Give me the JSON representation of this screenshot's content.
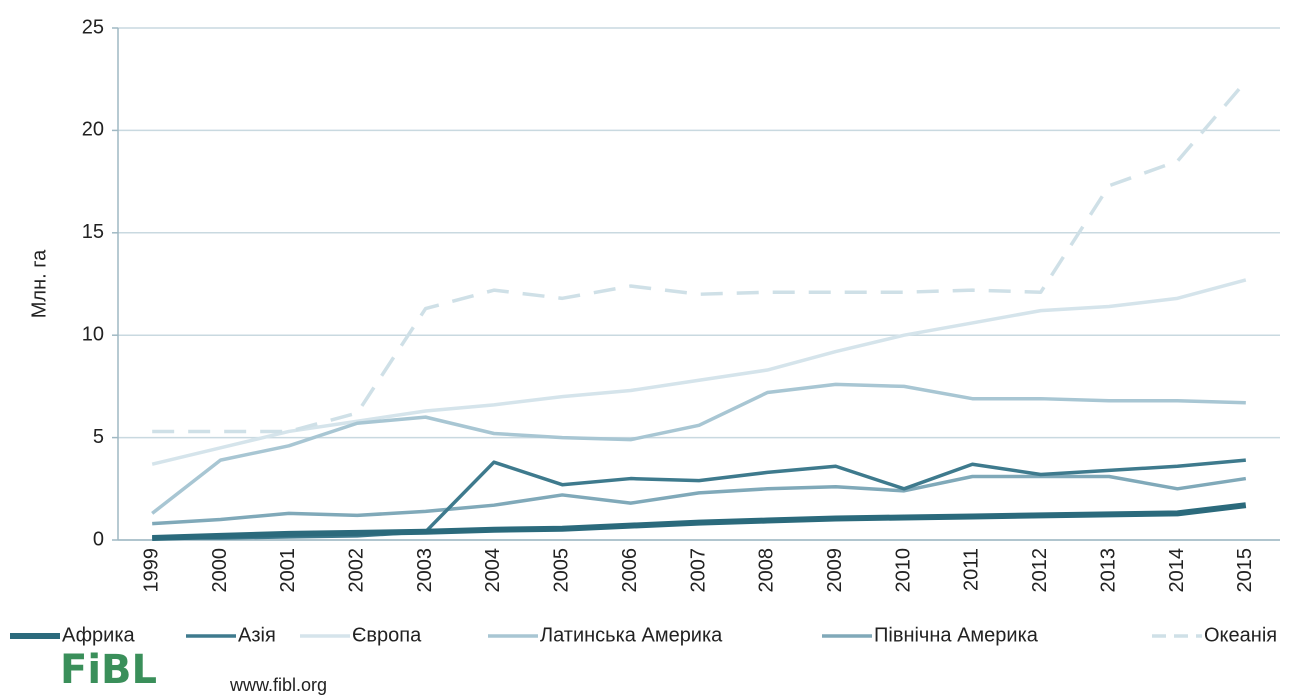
{
  "chart_data": {
    "type": "line",
    "y_label": "Млн. га",
    "categories": [
      "1999",
      "2000",
      "2001",
      "2002",
      "2003",
      "2004",
      "2005",
      "2006",
      "2007",
      "2008",
      "2009",
      "2010",
      "2011",
      "2012",
      "2013",
      "2014",
      "2015"
    ],
    "series": [
      {
        "name": "Африка",
        "color": "#2b6a7c",
        "values": [
          0.1,
          0.2,
          0.3,
          0.35,
          0.4,
          0.5,
          0.55,
          0.7,
          0.85,
          0.95,
          1.05,
          1.1,
          1.15,
          1.2,
          1.25,
          1.3,
          1.7
        ]
      },
      {
        "name": "Азія",
        "color": "#3e7a8d",
        "values": [
          0.1,
          0.1,
          0.15,
          0.2,
          0.4,
          3.8,
          2.7,
          3.0,
          2.9,
          3.3,
          3.6,
          2.5,
          3.7,
          3.2,
          3.4,
          3.6,
          3.9
        ]
      },
      {
        "name": "Європа",
        "color": "#d5e4eb",
        "values": [
          3.7,
          4.5,
          5.3,
          5.8,
          6.3,
          6.6,
          7.0,
          7.3,
          7.8,
          8.3,
          9.2,
          10.0,
          10.6,
          11.2,
          11.4,
          11.8,
          12.7
        ]
      },
      {
        "name": "Латинська Америка",
        "color": "#a8c6d3",
        "values": [
          1.3,
          3.9,
          4.6,
          5.7,
          6.0,
          5.2,
          5.0,
          4.9,
          5.6,
          7.2,
          7.6,
          7.5,
          6.9,
          6.9,
          6.8,
          6.8,
          6.7
        ]
      },
      {
        "name": "Північна Америка",
        "color": "#80a9b9",
        "values": [
          0.8,
          1.0,
          1.3,
          1.2,
          1.4,
          1.7,
          2.2,
          1.8,
          2.3,
          2.5,
          2.6,
          2.4,
          3.1,
          3.1,
          3.1,
          2.5,
          3.0
        ]
      },
      {
        "name": "Океанія",
        "color": "#cfe0e7",
        "dashed": true,
        "values": [
          5.3,
          5.3,
          5.3,
          6.2,
          11.3,
          12.2,
          11.8,
          12.4,
          12.0,
          12.1,
          12.1,
          12.1,
          12.2,
          12.1,
          17.3,
          18.5,
          22.4
        ]
      }
    ],
    "ylim": [
      0,
      25
    ],
    "yticks": [
      0,
      5,
      10,
      15,
      20,
      25
    ],
    "grid": true,
    "legend": "bottom"
  },
  "logo": "FiBL",
  "url": "www.fibl.org"
}
